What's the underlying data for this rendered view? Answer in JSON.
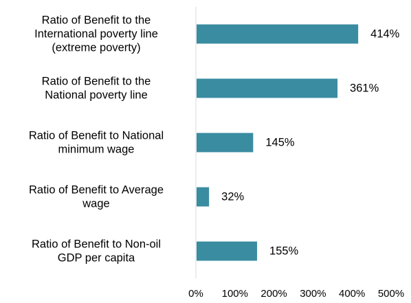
{
  "chart_data": {
    "type": "bar",
    "orientation": "horizontal",
    "title": "",
    "xlabel": "",
    "ylabel": "",
    "xlim": [
      0,
      500
    ],
    "ticks": [
      "0%",
      "100%",
      "200%",
      "300%",
      "400%",
      "500%"
    ],
    "tick_values": [
      0,
      100,
      200,
      300,
      400,
      500
    ],
    "grid": false,
    "legend": "none",
    "bar_color": "#3A8CA1",
    "categories": [
      [
        "Ratio of Benefit to the",
        "International poverty line",
        "(extreme poverty)"
      ],
      [
        "Ratio of Benefit to the",
        "National poverty line"
      ],
      [
        "Ratio of Benefit to National",
        "minimum wage"
      ],
      [
        "Ratio of Benefit to Average",
        "wage"
      ],
      [
        "Ratio of Benefit to Non-oil",
        "GDP per capita"
      ]
    ],
    "values": [
      414,
      361,
      145,
      32,
      155
    ],
    "value_labels": [
      "414%",
      "361%",
      "145%",
      "32%",
      "155%"
    ]
  }
}
